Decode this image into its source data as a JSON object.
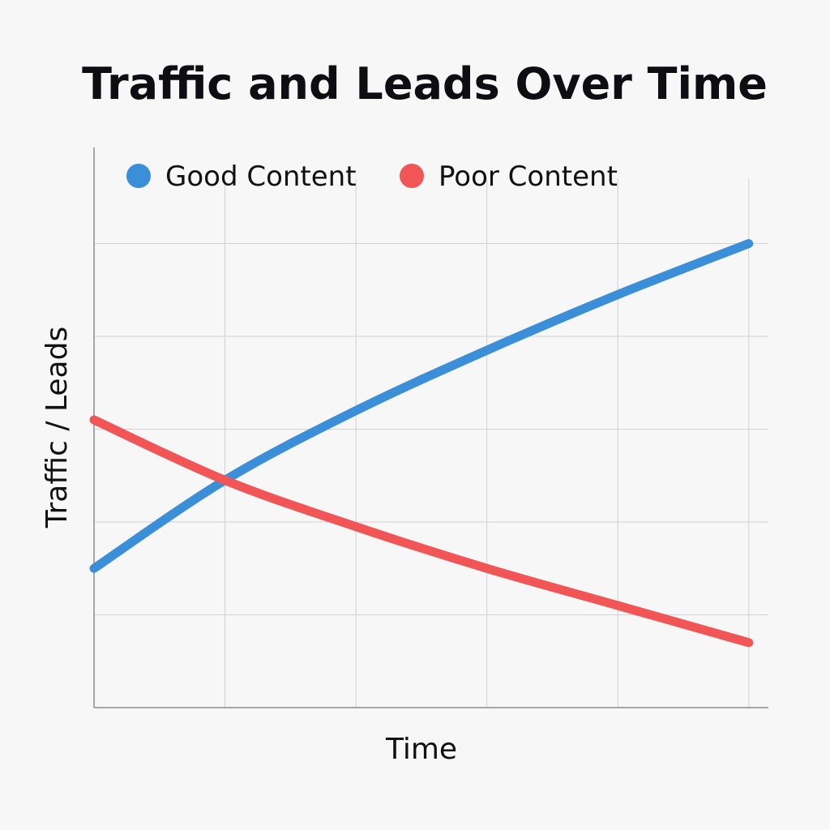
{
  "chart_data": {
    "type": "line",
    "title": "Traffic and Leads Over Time",
    "xlabel": "Time",
    "ylabel": "Traffic / Leads",
    "x": [
      0,
      1,
      2,
      3,
      4,
      5
    ],
    "xlim": [
      0,
      5.15
    ],
    "ylim": [
      0,
      6
    ],
    "grid": true,
    "legend_position": "top-left",
    "series": [
      {
        "name": "Good Content",
        "color": "#3b8fd9",
        "values": [
          1.5,
          2.45,
          3.2,
          3.85,
          4.45,
          5.0
        ]
      },
      {
        "name": "Poor Content",
        "color": "#f25555",
        "values": [
          3.1,
          2.45,
          1.95,
          1.5,
          1.1,
          0.7
        ]
      }
    ]
  }
}
